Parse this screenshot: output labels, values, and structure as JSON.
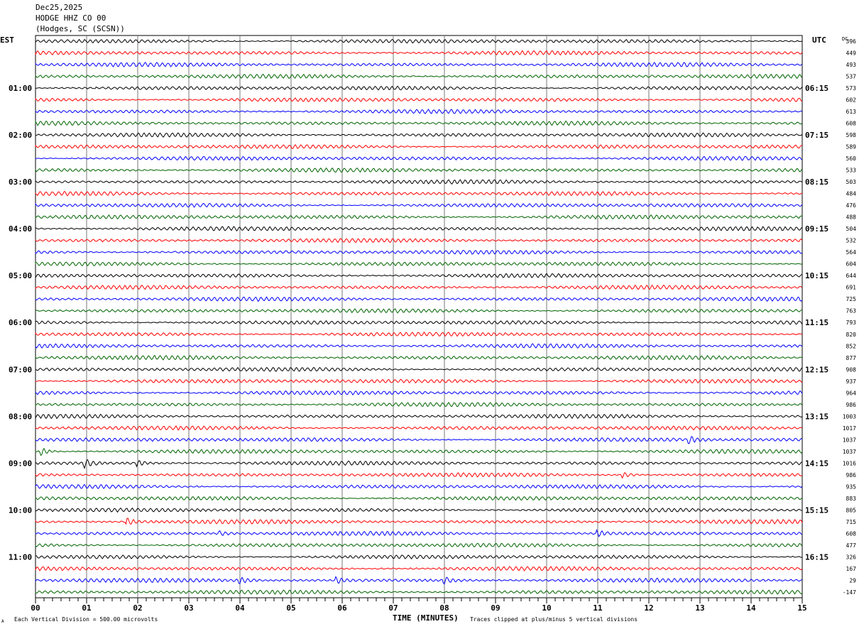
{
  "header": {
    "date": "Dec25,2025",
    "station": "HODGE HHZ CO 00",
    "location": "(Hodges, SC (SCSN))"
  },
  "footer": {
    "scale_note": "Each Vertical Division =  500.00 microvolts",
    "clip_note": "Traces clipped at plus/minus 5 vertical divisions",
    "corner_mark": "A"
  },
  "chart_data": {
    "type": "line",
    "title": "HODGE HHZ CO 00",
    "xlabel": "TIME (MINUTES)",
    "xlim": [
      0,
      15
    ],
    "x_ticks": [
      "00",
      "01",
      "02",
      "03",
      "04",
      "05",
      "06",
      "07",
      "08",
      "09",
      "10",
      "11",
      "12",
      "13",
      "14",
      "15"
    ],
    "left_axis_title": "EST",
    "right_axis_title": "UTC",
    "dc_title": "DC",
    "trace_colors": [
      "#000000",
      "#ff0000",
      "#0000ff",
      "#006400"
    ],
    "left_hour_labels": [
      "",
      "01:00",
      "02:00",
      "03:00",
      "04:00",
      "05:00",
      "06:00",
      "07:00",
      "08:00",
      "09:00",
      "10:00",
      "11:00"
    ],
    "right_hour_labels": [
      "",
      "06:15",
      "07:15",
      "08:15",
      "09:15",
      "10:15",
      "11:15",
      "12:15",
      "13:15",
      "14:15",
      "15:15",
      "16:15"
    ],
    "dc_values": [
      "396",
      "449",
      "493",
      "537",
      "573",
      "602",
      "613",
      "608",
      "598",
      "589",
      "560",
      "533",
      "503",
      "484",
      "476",
      "488",
      "504",
      "532",
      "564",
      "604",
      "644",
      "691",
      "725",
      "763",
      "793",
      "820",
      "852",
      "877",
      "908",
      "937",
      "964",
      "986",
      "1003",
      "1017",
      "1037",
      "1037",
      "1016",
      "986",
      "935",
      "883",
      "805",
      "715",
      "608",
      "477",
      "326",
      "167",
      "29",
      "-147"
    ],
    "events": [
      {
        "trace": 35,
        "minute": 0.1,
        "amplitude": 3
      },
      {
        "trace": 36,
        "minute": 0.95,
        "amplitude": 3
      },
      {
        "trace": 36,
        "minute": 2.0,
        "amplitude": 2
      },
      {
        "trace": 34,
        "minute": 12.8,
        "amplitude": 2
      },
      {
        "trace": 37,
        "minute": 11.5,
        "amplitude": 2
      },
      {
        "trace": 41,
        "minute": 1.8,
        "amplitude": 2.5
      },
      {
        "trace": 42,
        "minute": 11.0,
        "amplitude": 2
      },
      {
        "trace": 42,
        "minute": 3.6,
        "amplitude": 1.5
      },
      {
        "trace": 46,
        "minute": 4.0,
        "amplitude": 2
      },
      {
        "trace": 46,
        "minute": 5.9,
        "amplitude": 2
      },
      {
        "trace": 46,
        "minute": 8.0,
        "amplitude": 2
      }
    ]
  }
}
